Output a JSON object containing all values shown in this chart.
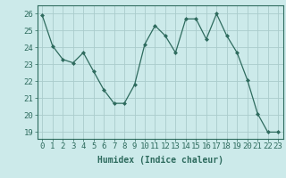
{
  "x": [
    0,
    1,
    2,
    3,
    4,
    5,
    6,
    7,
    8,
    9,
    10,
    11,
    12,
    13,
    14,
    15,
    16,
    17,
    18,
    19,
    20,
    21,
    22,
    23
  ],
  "y": [
    25.9,
    24.1,
    23.3,
    23.1,
    23.7,
    22.6,
    21.5,
    20.7,
    20.7,
    21.8,
    24.2,
    25.3,
    24.7,
    23.7,
    25.7,
    25.7,
    24.5,
    26.0,
    24.7,
    23.7,
    22.1,
    20.1,
    19.0,
    19.0
  ],
  "line_color": "#2e6b5e",
  "marker": "D",
  "marker_size": 2,
  "bg_color": "#cceaea",
  "grid_color": "#aacccc",
  "xlabel": "Humidex (Indice chaleur)",
  "ylim": [
    18.6,
    26.5
  ],
  "xlim": [
    -0.5,
    23.5
  ],
  "yticks": [
    19,
    20,
    21,
    22,
    23,
    24,
    25,
    26
  ],
  "xticks": [
    0,
    1,
    2,
    3,
    4,
    5,
    6,
    7,
    8,
    9,
    10,
    11,
    12,
    13,
    14,
    15,
    16,
    17,
    18,
    19,
    20,
    21,
    22,
    23
  ],
  "xlabel_fontsize": 7,
  "tick_fontsize": 6.5
}
